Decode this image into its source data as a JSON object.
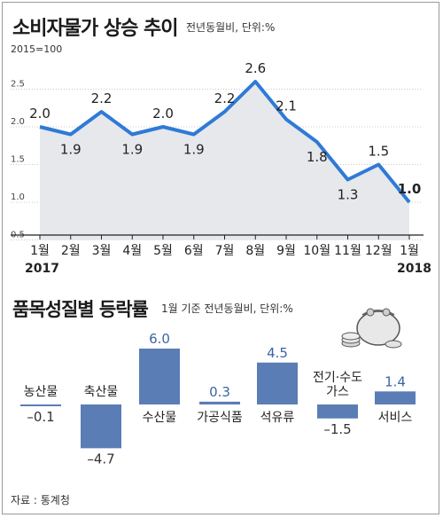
{
  "chart_data": [
    {
      "type": "area",
      "title": "소비자물가 상승 추이",
      "subtitle": "전년동월비, 단위:%",
      "base_note": "2015=100",
      "x": [
        "1월",
        "2월",
        "3월",
        "4월",
        "5월",
        "6월",
        "7월",
        "8월",
        "9월",
        "10월",
        "11월",
        "12월",
        "1월"
      ],
      "x_years": [
        "2017",
        "2018"
      ],
      "values": [
        2.0,
        1.9,
        2.2,
        1.9,
        2.0,
        1.9,
        2.2,
        2.6,
        2.1,
        1.8,
        1.3,
        1.5,
        1.0
      ],
      "value_labels": [
        "2.0",
        "1.9",
        "2.2",
        "1.9",
        "2.0",
        "1.9",
        "2.2",
        "2.6",
        "2.1",
        "1.8",
        "1.3",
        "1.5",
        "1.0"
      ],
      "yticks": [
        "0.5",
        "1.0",
        "1.5",
        "2.0",
        "2.5"
      ],
      "ylim": [
        0.5,
        2.8
      ],
      "grid": true,
      "colors": {
        "line": "#2f7ad6",
        "area": "#e6e8ec",
        "highlight": "#2f7ad6"
      }
    },
    {
      "type": "bar",
      "title": "품목성질별 등락률",
      "subtitle": "1월 기준 전년동월비, 단위:%",
      "categories": [
        "농산물",
        "축산물",
        "수산물",
        "가공식품",
        "석유류",
        "전기·수도·가스",
        "서비스"
      ],
      "category_lines": [
        [
          "농산물"
        ],
        [
          "축산물"
        ],
        [
          "수산물"
        ],
        [
          "가공식품"
        ],
        [
          "석유류"
        ],
        [
          "전기·수도",
          "가스"
        ],
        [
          "서비스"
        ]
      ],
      "values": [
        -0.1,
        -4.7,
        6.0,
        0.3,
        4.5,
        -1.5,
        1.4
      ],
      "value_labels": [
        "–0.1",
        "–4.7",
        "6.0",
        "0.3",
        "4.5",
        "–1.5",
        "1.4"
      ],
      "colors": {
        "bar": "#5b7db5",
        "positive_label": "#3b64a6",
        "negative_label": "#333333"
      }
    }
  ],
  "source": "자료 : 통계청",
  "icon": "coin-purse-icon"
}
